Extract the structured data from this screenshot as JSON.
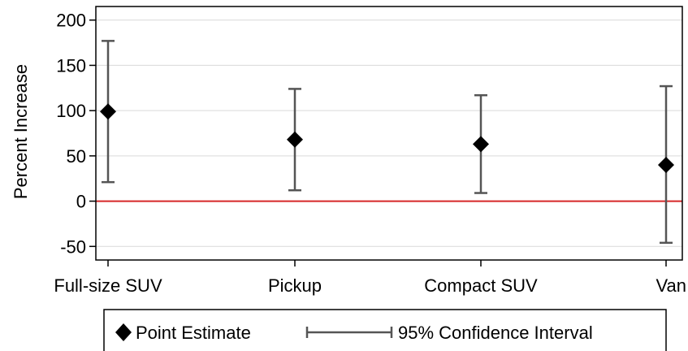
{
  "chart_data": {
    "type": "scatter",
    "title": "",
    "xlabel": "",
    "ylabel": "Percent Increase",
    "categories": [
      "Full-size SUV",
      "Pickup",
      "Compact SUV",
      "Van"
    ],
    "point_estimate": [
      99,
      68,
      63,
      40
    ],
    "ci_lower": [
      21,
      12,
      9,
      -46
    ],
    "ci_upper": [
      177,
      124,
      117,
      127
    ],
    "reference_line": 0,
    "ylim": [
      -65,
      215
    ],
    "yticks": [
      -50,
      0,
      50,
      100,
      150,
      200
    ],
    "grid": true,
    "legend": {
      "placement": "bottom",
      "entries": [
        "Point Estimate",
        "95% Confidence Interval"
      ]
    },
    "colors": {
      "marker": "#000000",
      "ci": "#555555",
      "reference_line": "#d62728",
      "grid": "#d9d9d9",
      "axis": "#000000"
    }
  }
}
